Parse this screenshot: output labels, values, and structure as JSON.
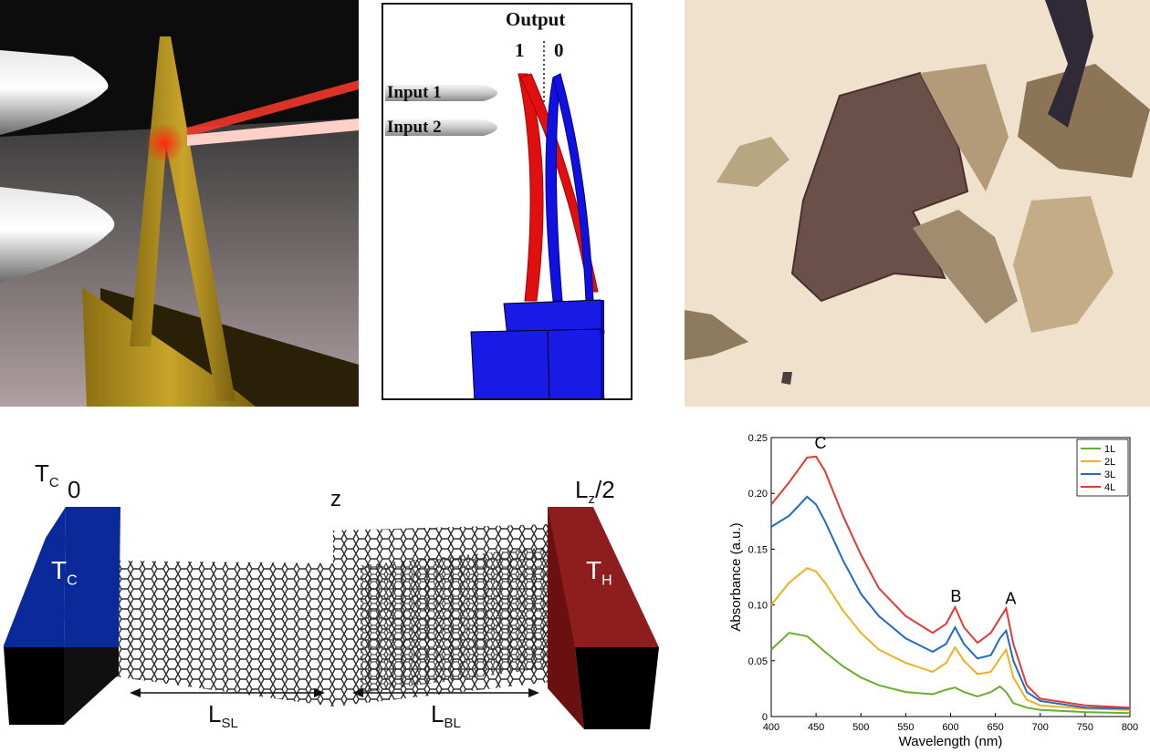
{
  "logic_panel": {
    "output_label": "Output",
    "output_1": "1",
    "output_0": "0",
    "input_1": "Input 1",
    "input_2": "Input 2"
  },
  "ribbon_panel": {
    "tc_top": "T",
    "tc_top_sub": "C",
    "zero": "0",
    "z": "z",
    "lz": "L",
    "lz_sub": "z",
    "lz_tail": "/2",
    "tc_block": "T",
    "tc_block_sub": "C",
    "th_block": "T",
    "th_block_sub": "H",
    "lsl": "L",
    "lsl_sub": "SL",
    "lbl": "L",
    "lbl_sub": "BL",
    "colors": {
      "cold": "#0a2a9a",
      "hot": "#8e1e1e",
      "lattice": "#333333"
    }
  },
  "chart_data": {
    "type": "line",
    "xlabel": "Wavelength (nm)",
    "ylabel": "Absorbance (a.u.)",
    "xlim": [
      400,
      800
    ],
    "ylim": [
      0,
      0.25
    ],
    "xticks": [
      400,
      450,
      500,
      550,
      600,
      650,
      700,
      750,
      800
    ],
    "yticks": [
      0,
      0.05,
      0.1,
      0.15,
      0.2,
      0.25
    ],
    "ytick_labels": [
      "0",
      "0.05",
      "0.10",
      "0.15",
      "0.20",
      "0.25"
    ],
    "legend_position": "top-right",
    "annotations": [
      {
        "text": "C",
        "x": 455,
        "y": 0.24
      },
      {
        "text": "B",
        "x": 606,
        "y": 0.103
      },
      {
        "text": "A",
        "x": 667,
        "y": 0.101
      }
    ],
    "x": [
      400,
      420,
      440,
      450,
      460,
      480,
      500,
      520,
      550,
      580,
      595,
      605,
      615,
      630,
      645,
      655,
      662,
      670,
      685,
      700,
      750,
      800
    ],
    "series": [
      {
        "name": "1L",
        "color": "#6aae2e",
        "values": [
          0.06,
          0.075,
          0.072,
          0.065,
          0.058,
          0.045,
          0.035,
          0.028,
          0.022,
          0.02,
          0.024,
          0.026,
          0.022,
          0.018,
          0.022,
          0.027,
          0.022,
          0.012,
          0.008,
          0.006,
          0.004,
          0.003
        ]
      },
      {
        "name": "2L",
        "color": "#f0b020",
        "values": [
          0.1,
          0.12,
          0.133,
          0.13,
          0.12,
          0.095,
          0.075,
          0.06,
          0.048,
          0.04,
          0.048,
          0.062,
          0.05,
          0.038,
          0.04,
          0.052,
          0.06,
          0.035,
          0.015,
          0.01,
          0.007,
          0.006
        ]
      },
      {
        "name": "3L",
        "color": "#1f6cc0",
        "values": [
          0.17,
          0.18,
          0.197,
          0.19,
          0.175,
          0.14,
          0.11,
          0.09,
          0.07,
          0.058,
          0.065,
          0.08,
          0.065,
          0.052,
          0.055,
          0.07,
          0.077,
          0.05,
          0.022,
          0.014,
          0.008,
          0.007
        ]
      },
      {
        "name": "4L",
        "color": "#e23a35",
        "values": [
          0.19,
          0.21,
          0.232,
          0.233,
          0.22,
          0.18,
          0.145,
          0.115,
          0.09,
          0.075,
          0.083,
          0.098,
          0.08,
          0.066,
          0.075,
          0.088,
          0.097,
          0.065,
          0.028,
          0.016,
          0.01,
          0.008
        ]
      }
    ]
  }
}
